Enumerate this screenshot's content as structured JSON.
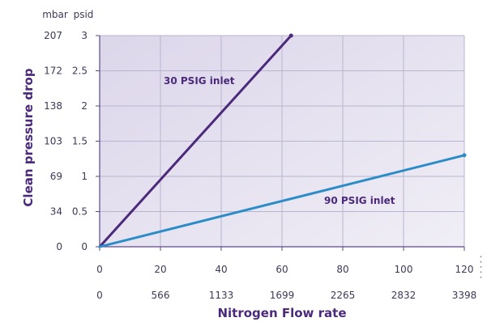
{
  "chart_data": {
    "type": "line",
    "xlabel": "Nitrogen Flow rate",
    "ylabel": "Clean pressure drop",
    "xlim": [
      0,
      120
    ],
    "ylim": [
      0,
      3
    ],
    "grid": true,
    "x_ticks": [
      "0",
      "20",
      "40",
      "60",
      "80",
      "100",
      "120"
    ],
    "x_ticks_alt": [
      "0",
      "566",
      "1133",
      "1699",
      "2265",
      "2832",
      "3398"
    ],
    "y_unit_left": "mbar",
    "y_unit_right": "psid",
    "y_ticks_psid": [
      "0",
      "0.5",
      "1",
      "1.5",
      "2",
      "2.5",
      "3"
    ],
    "y_ticks_mbar": [
      "0",
      "34",
      "69",
      "103",
      "138",
      "172",
      "207"
    ],
    "series": [
      {
        "name": "30 PSIG inlet",
        "color": "#4b2a7b",
        "points": [
          [
            0,
            0
          ],
          [
            63,
            3.0
          ]
        ]
      },
      {
        "name": "90 PSIG inlet",
        "color": "#2b8cc8",
        "points": [
          [
            0,
            0
          ],
          [
            120,
            1.3
          ]
        ]
      }
    ]
  },
  "colors": {
    "plot_background": "#e6e2f0",
    "grid": "#b9b5cf",
    "axis": "#5b4a8a"
  },
  "side_mark": "• • • • •"
}
